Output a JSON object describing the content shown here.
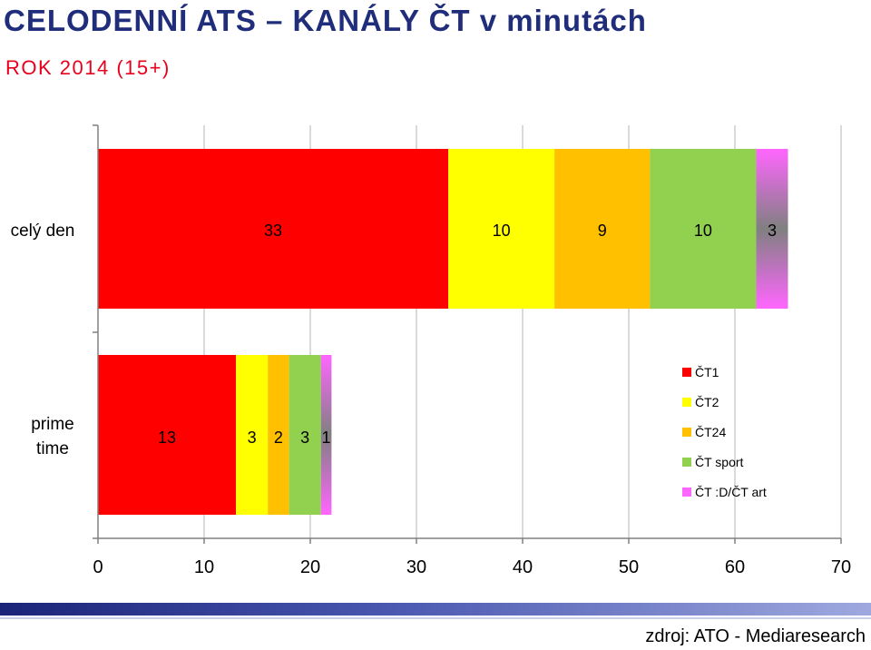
{
  "title": "CELODENNÍ  ATS – KANÁLY ČT v minutách",
  "subtitle": "ROK 2014 (15+)",
  "source": "zdroj: ATO - Mediaresearch",
  "chart_data": {
    "type": "bar",
    "orientation": "horizontal",
    "stacked": true,
    "categories": [
      "celý den",
      "prime time"
    ],
    "series": [
      {
        "name": "ČT1",
        "values": [
          33,
          13
        ],
        "color": "#ff0000"
      },
      {
        "name": "ČT2",
        "values": [
          10,
          3
        ],
        "color": "#ffff00"
      },
      {
        "name": "ČT24",
        "values": [
          9,
          2
        ],
        "color": "#ffc000"
      },
      {
        "name": "ČT sport",
        "values": [
          10,
          3
        ],
        "color": "#92d050"
      },
      {
        "name": "ČT :D/ČT art",
        "values": [
          3,
          1
        ],
        "color": "#ff66ff"
      }
    ],
    "xlim": [
      0,
      70
    ],
    "xticks": [
      0,
      10,
      20,
      30,
      40,
      50,
      60,
      70
    ],
    "grid": true,
    "legend": "right"
  }
}
